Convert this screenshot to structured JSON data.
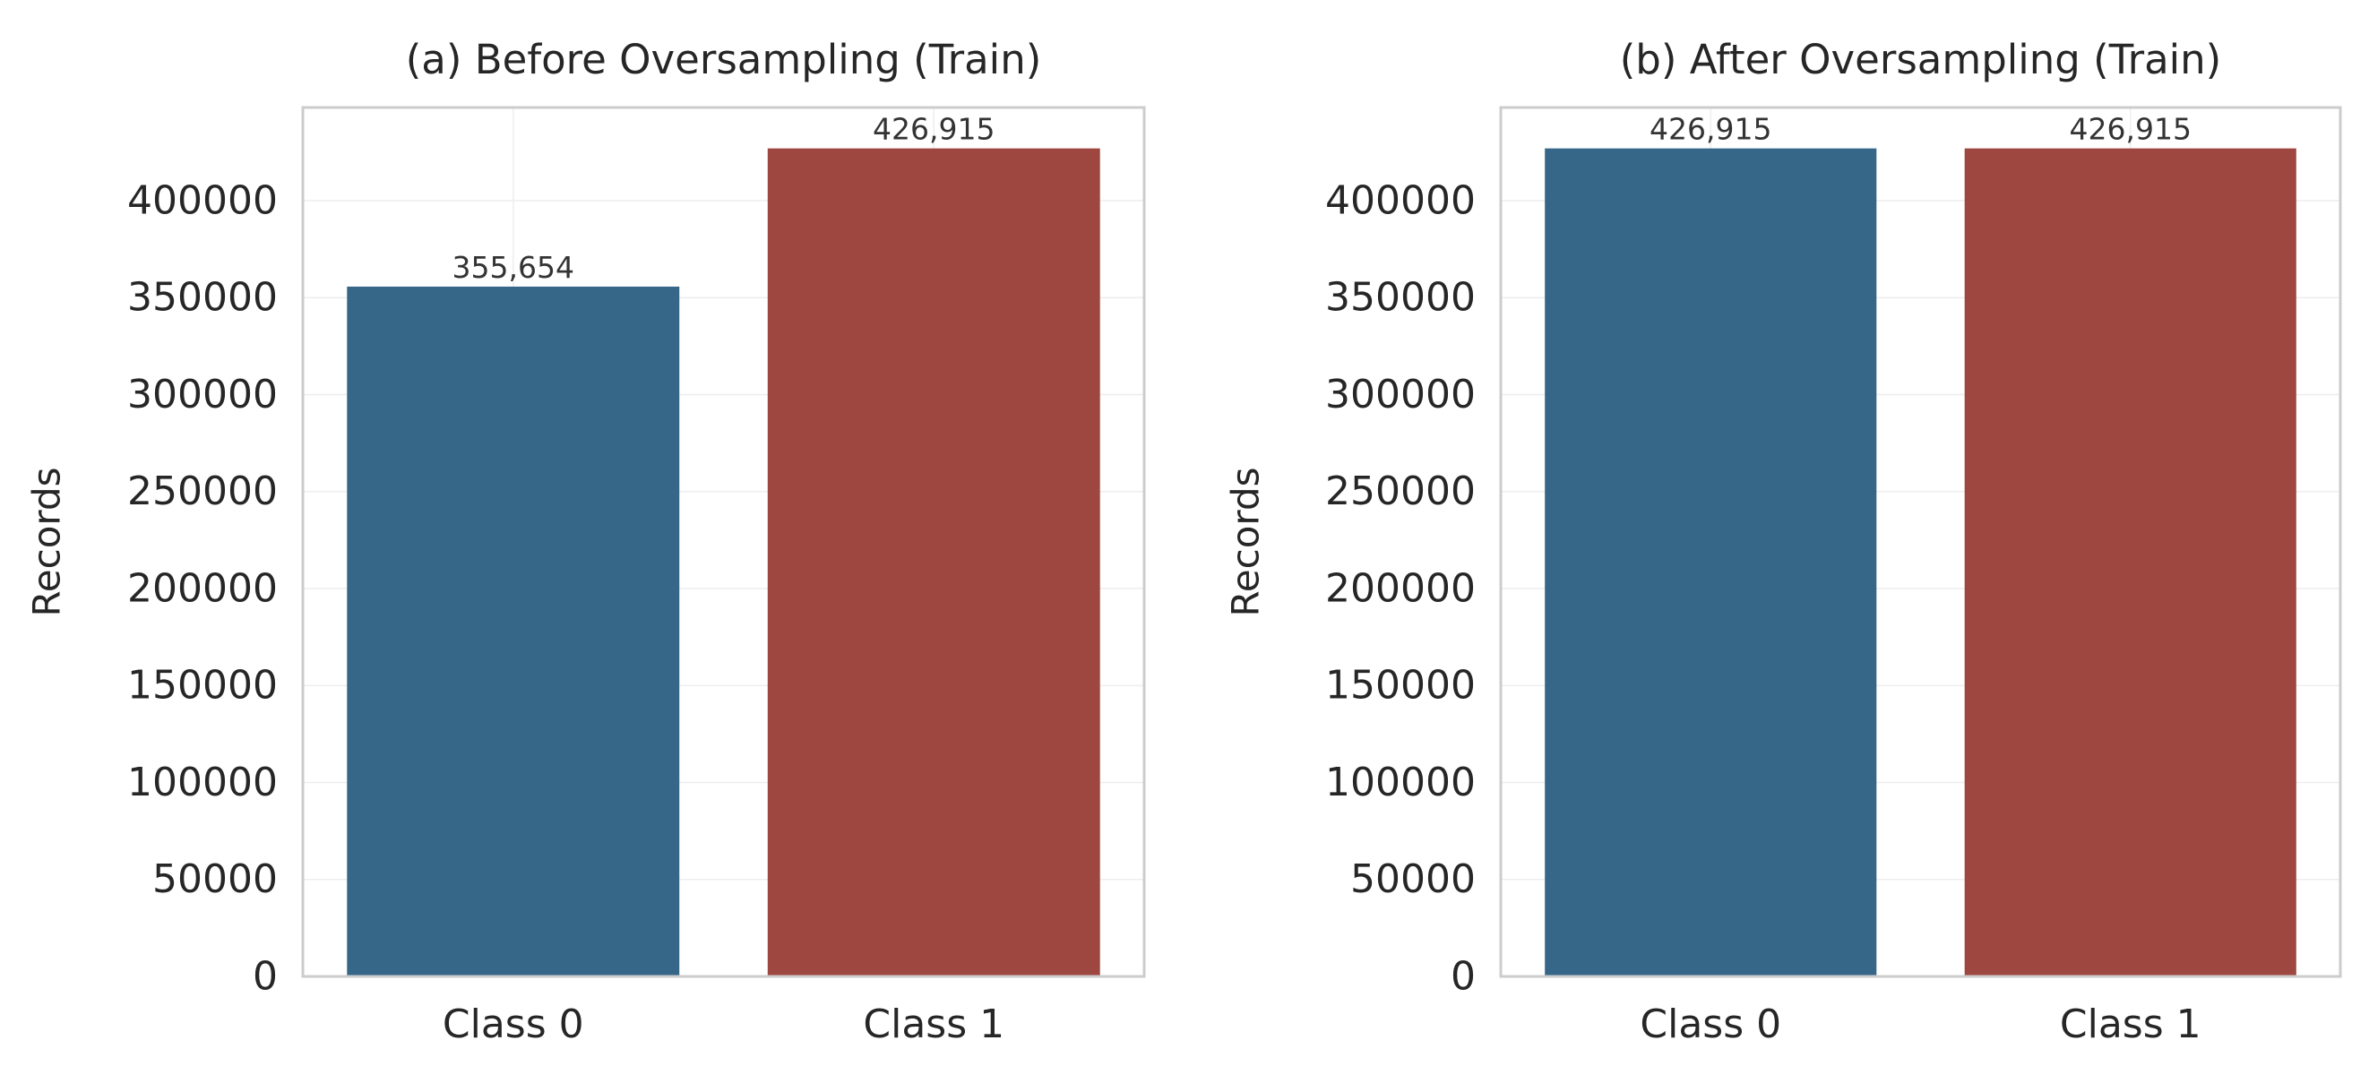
{
  "chart_data": [
    {
      "type": "bar",
      "title": "(a) Before Oversampling (Train)",
      "xlabel": "",
      "ylabel": "Records",
      "categories": [
        "Class 0",
        "Class 1"
      ],
      "values": [
        355654,
        426915
      ],
      "value_labels": [
        "355,654",
        "426,915"
      ],
      "colors": [
        "#366688",
        "#9e4640"
      ],
      "ylim": [
        0,
        448000
      ],
      "yticks": [
        0,
        50000,
        100000,
        150000,
        200000,
        250000,
        300000,
        350000,
        400000
      ],
      "ytick_labels": [
        "0",
        "50000",
        "100000",
        "150000",
        "200000",
        "250000",
        "300000",
        "350000",
        "400000"
      ],
      "grid": true,
      "legend": "none"
    },
    {
      "type": "bar",
      "title": "(b) After Oversampling (Train)",
      "xlabel": "",
      "ylabel": "Records",
      "categories": [
        "Class 0",
        "Class 1"
      ],
      "values": [
        426915,
        426915
      ],
      "value_labels": [
        "426,915",
        "426,915"
      ],
      "colors": [
        "#366688",
        "#9e4640"
      ],
      "ylim": [
        0,
        448000
      ],
      "yticks": [
        0,
        50000,
        100000,
        150000,
        200000,
        250000,
        300000,
        350000,
        400000
      ],
      "ytick_labels": [
        "0",
        "50000",
        "100000",
        "150000",
        "200000",
        "250000",
        "300000",
        "350000",
        "400000"
      ],
      "grid": true,
      "legend": "none"
    }
  ]
}
